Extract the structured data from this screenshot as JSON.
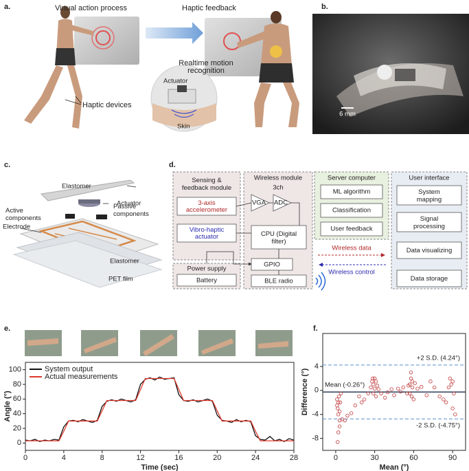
{
  "a": {
    "label": "a.",
    "virtual": "Virtual action process",
    "haptic": "Haptic feedback",
    "recognition": [
      "Realtime motion",
      "recognition"
    ],
    "actuator": "Actuator",
    "devices": "Haptic devices",
    "skin": "Skin"
  },
  "b": {
    "label": "b.",
    "scale": "6 mm"
  },
  "c": {
    "label": "c.",
    "elastomer_top": "Elastomer",
    "actuator": "Actuator",
    "active": [
      "Active",
      "components"
    ],
    "passive": [
      "Passive",
      "components"
    ],
    "electrode": "Electrode",
    "elastomer_bottom": "Elastomer",
    "pet": "PET film"
  },
  "d": {
    "label": "d.",
    "sensing": {
      "title": [
        "Sensing &",
        "feedback module"
      ],
      "accel": [
        "3-axis",
        "accelerometer"
      ],
      "vibro": [
        "Vibro-haptic",
        "actuator"
      ]
    },
    "power": {
      "title": "Power supply",
      "battery": "Battery"
    },
    "wireless": {
      "title": "Wireless module",
      "channels": "3ch",
      "vga": "VGA",
      "adc": "ADC",
      "cpu": [
        "CPU (Digital",
        "filter)"
      ],
      "gpio": "GPIO",
      "ble": "BLE radio"
    },
    "server": {
      "title": "Server computer",
      "items": [
        "ML algorithm",
        "Classification",
        "User feedback"
      ]
    },
    "wireless_data": "Wireless data",
    "wireless_control": "Wireless control",
    "ui": {
      "title": "User interface",
      "items": [
        [
          "System",
          "mapping"
        ],
        [
          "Signal",
          "processing"
        ],
        [
          "Data visualizing"
        ],
        [
          "Data storage"
        ]
      ]
    }
  },
  "e_label": "e.",
  "f_label": "f.",
  "chart_data": [
    {
      "type": "line",
      "x_label": "Time (sec)",
      "y_label": "Angle (°)",
      "x": [
        0,
        0.5,
        1,
        1.5,
        2,
        2.5,
        3,
        3.5,
        4,
        4.5,
        5,
        5.5,
        6,
        6.5,
        7,
        7.5,
        8,
        8.5,
        9,
        9.5,
        10,
        10.5,
        11,
        11.5,
        12,
        12.5,
        13,
        13.5,
        14,
        14.5,
        15,
        15.5,
        16,
        16.5,
        17,
        17.5,
        18,
        18.5,
        19,
        19.5,
        20,
        20.5,
        21,
        21.5,
        22,
        22.5,
        23,
        23.5,
        24,
        24.5,
        25,
        25.5,
        26,
        26.5,
        27,
        27.5,
        28
      ],
      "series": [
        {
          "name": "System output",
          "color": "#111111",
          "values": [
            4,
            3,
            5,
            2,
            4,
            3,
            5,
            4,
            22,
            30,
            31,
            29,
            32,
            30,
            28,
            31,
            50,
            57,
            59,
            57,
            60,
            58,
            56,
            59,
            80,
            87,
            89,
            86,
            90,
            87,
            88,
            89,
            66,
            58,
            57,
            59,
            56,
            58,
            60,
            57,
            38,
            31,
            30,
            28,
            32,
            29,
            31,
            29,
            10,
            5,
            4,
            9,
            3,
            5,
            2,
            6,
            4
          ]
        },
        {
          "name": "Actual measurements",
          "color": "#e0372b",
          "values": [
            3,
            3,
            3,
            3,
            3,
            3,
            3,
            3,
            16,
            30,
            30,
            30,
            30,
            30,
            30,
            30,
            44,
            58,
            58,
            58,
            58,
            58,
            58,
            58,
            73,
            88,
            88,
            88,
            88,
            88,
            88,
            88,
            73,
            58,
            58,
            58,
            58,
            58,
            58,
            58,
            44,
            30,
            30,
            30,
            30,
            30,
            30,
            30,
            16,
            3,
            3,
            3,
            3,
            3,
            3,
            3,
            3
          ]
        }
      ],
      "xlim": [
        0,
        28
      ],
      "xticks": [
        0,
        4,
        8,
        12,
        16,
        20,
        24,
        28
      ],
      "ylim": [
        -10,
        110
      ],
      "yticks": [
        0,
        20,
        40,
        60,
        80,
        100
      ],
      "legend": "upper left"
    },
    {
      "type": "scatter",
      "x_label": "Mean (°)",
      "y_label": "Difference (°)",
      "x": [
        1,
        1,
        1.5,
        2,
        2,
        2.5,
        3,
        3,
        3.5,
        4,
        2,
        1.5,
        3,
        5,
        7,
        9,
        12,
        15,
        18,
        20,
        22,
        25,
        27,
        28,
        28.5,
        29,
        29,
        30,
        30,
        31,
        31,
        32,
        33,
        35,
        38,
        40,
        43,
        45,
        48,
        50,
        52,
        55,
        56,
        57,
        57,
        58,
        58,
        58.5,
        59,
        59,
        60,
        61,
        63,
        66,
        70,
        73,
        76,
        80,
        83,
        85,
        87,
        88,
        89,
        90,
        90,
        91,
        92
      ],
      "series": [
        {
          "name": "Difference",
          "color": "#c0393b",
          "values": [
            -1.5,
            -2.5,
            -3,
            -2,
            -4,
            -1,
            -3.5,
            -5,
            -2,
            -0.5,
            -7,
            -8.6,
            -6,
            -4.8,
            -5,
            -4.2,
            -3.8,
            -2.5,
            -1,
            -2,
            -1.5,
            -0.5,
            0.5,
            1.5,
            2,
            1,
            -0.5,
            2,
            0.3,
            1.5,
            -1,
            0.8,
            0.2,
            -0.5,
            -1.2,
            -0.3,
            0.2,
            -0.8,
            0.3,
            -0.2,
            0.5,
            -0.5,
            0.8,
            1,
            -0.5,
            3,
            2,
            -1,
            1.5,
            0.5,
            -1.5,
            1.2,
            0.3,
            0.6,
            -0.8,
            1.5,
            0.5,
            -1,
            -1.5,
            -2,
            0.5,
            2,
            1,
            -3,
            1.5,
            -0.5,
            -4
          ]
        }
      ],
      "reference_lines": [
        {
          "value": 4.24,
          "label": "+2 S.D. (4.24°)",
          "color": "#5a8fd0",
          "dashed": true
        },
        {
          "value": -0.26,
          "label": "Mean (-0.26°)",
          "color": "#2b3e58",
          "dashed": false
        },
        {
          "value": -4.75,
          "label": "-2 S.D. (-4.75°)",
          "color": "#5a8fd0",
          "dashed": true
        }
      ],
      "xlim": [
        -10,
        100
      ],
      "xticks": [
        0,
        30,
        60,
        90
      ],
      "ylim": [
        -10,
        9.5
      ],
      "yticks": [
        -8,
        -4,
        0,
        4
      ]
    }
  ]
}
